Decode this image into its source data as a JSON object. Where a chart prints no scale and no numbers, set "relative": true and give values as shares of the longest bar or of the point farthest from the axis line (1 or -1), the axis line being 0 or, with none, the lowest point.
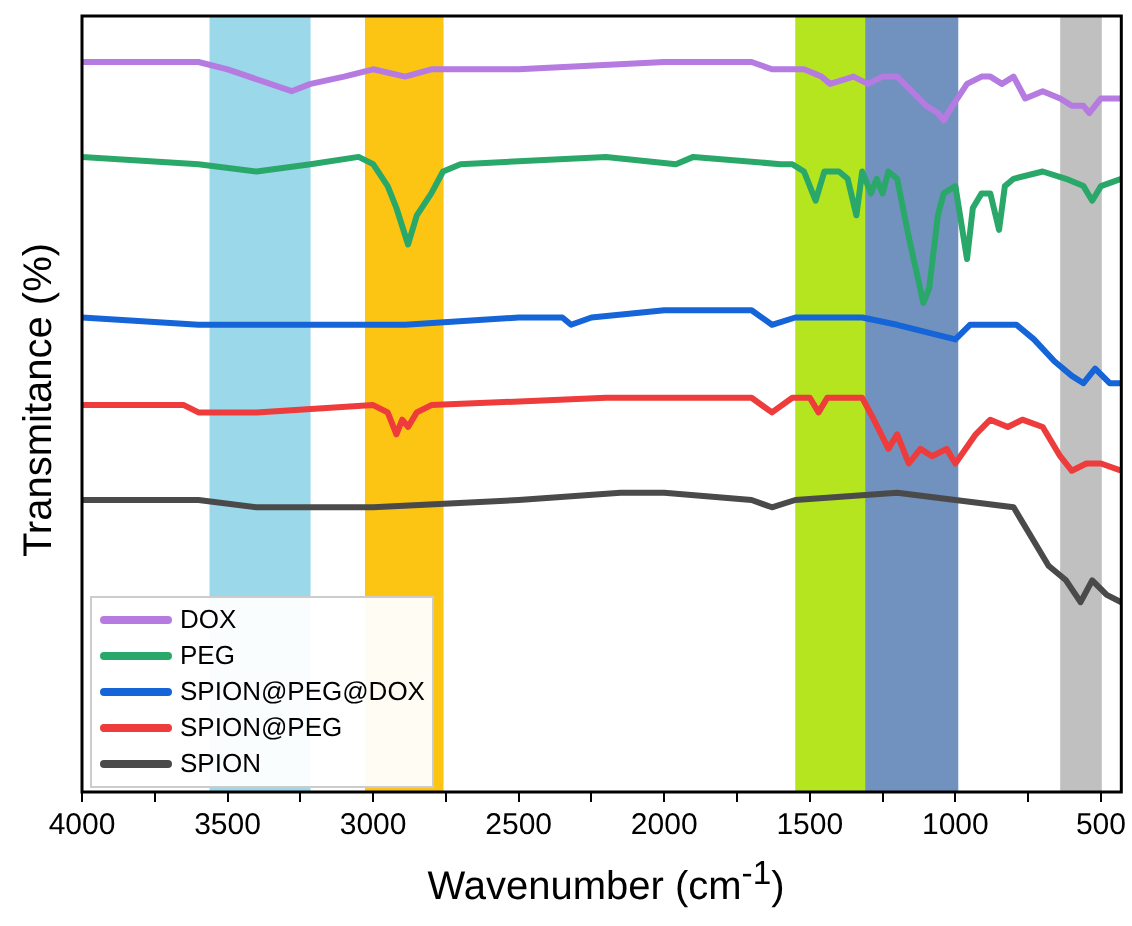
{
  "chart_data": {
    "type": "line",
    "xlabel": "Wavenumber (cm$^{-1}$)",
    "ylabel": "Transmitance (%)",
    "relative": true,
    "marker": "none",
    "legend": "bottom left",
    "tick_labels": "x",
    "xlim": [
      4000,
      430
    ],
    "xticks": [
      4000,
      {
        "value": 3750,
        "label": null
      },
      3500,
      {
        "value": 3250,
        "label": null
      },
      3000,
      {
        "value": 2750,
        "label": null
      },
      2500,
      {
        "value": 2250,
        "label": null
      },
      2000,
      {
        "value": 1750,
        "label": null
      },
      1500,
      {
        "value": 1250,
        "label": null
      },
      1000,
      {
        "value": 750,
        "label": null
      },
      500
    ],
    "bands": [
      {
        "axis": "x",
        "from": 3562,
        "to": 3215,
        "color": "#9ad8ea"
      },
      {
        "axis": "x",
        "from": 3028,
        "to": 2758,
        "color": "#fdc513"
      },
      {
        "axis": "x",
        "from": 1550,
        "to": 1310,
        "color": "#b5e51f"
      },
      {
        "axis": "x",
        "from": 1310,
        "to": 990,
        "color": "#7192bf"
      },
      {
        "axis": "x",
        "from": 640,
        "to": 497,
        "color": "#c0c0c0"
      }
    ],
    "series": [
      {
        "name": "DOX",
        "color": "#b57be0",
        "x": [
          4000,
          3600,
          3500,
          3280,
          3215,
          3100,
          3000,
          2890,
          2800,
          2500,
          2000,
          1700,
          1630,
          1580,
          1520,
          1460,
          1430,
          1350,
          1300,
          1250,
          1200,
          1150,
          1100,
          1060,
          1040,
          1010,
          960,
          910,
          880,
          840,
          800,
          760,
          700,
          640,
          600,
          560,
          540,
          500,
          430
        ],
        "values": [
          1.0,
          1.0,
          0.99,
          0.96,
          0.97,
          0.98,
          0.99,
          0.98,
          0.99,
          0.99,
          1.0,
          1.0,
          0.99,
          0.99,
          0.99,
          0.98,
          0.97,
          0.98,
          0.97,
          0.98,
          0.98,
          0.96,
          0.94,
          0.93,
          0.92,
          0.94,
          0.97,
          0.98,
          0.98,
          0.97,
          0.98,
          0.95,
          0.96,
          0.95,
          0.94,
          0.94,
          0.93,
          0.95,
          0.95
        ]
      },
      {
        "name": "PEG",
        "color": "#2aa86a",
        "x": [
          4000,
          3600,
          3400,
          3215,
          3050,
          3000,
          2950,
          2920,
          2880,
          2850,
          2800,
          2760,
          2700,
          2200,
          1960,
          1900,
          1600,
          1560,
          1520,
          1480,
          1450,
          1400,
          1370,
          1340,
          1320,
          1290,
          1270,
          1250,
          1230,
          1200,
          1160,
          1110,
          1090,
          1060,
          1040,
          1000,
          960,
          940,
          910,
          880,
          850,
          830,
          800,
          700,
          620,
          560,
          530,
          500,
          430
        ],
        "values": [
          0.87,
          0.86,
          0.85,
          0.86,
          0.87,
          0.86,
          0.83,
          0.8,
          0.75,
          0.79,
          0.82,
          0.85,
          0.86,
          0.87,
          0.86,
          0.87,
          0.86,
          0.86,
          0.85,
          0.81,
          0.85,
          0.85,
          0.84,
          0.79,
          0.85,
          0.82,
          0.84,
          0.82,
          0.85,
          0.84,
          0.76,
          0.67,
          0.69,
          0.79,
          0.82,
          0.83,
          0.73,
          0.8,
          0.82,
          0.82,
          0.77,
          0.83,
          0.84,
          0.85,
          0.84,
          0.83,
          0.81,
          0.83,
          0.84
        ]
      },
      {
        "name": "SPION@PEG@DOX",
        "color": "#1565d8",
        "x": [
          4000,
          3600,
          3400,
          3215,
          3000,
          2890,
          2500,
          2350,
          2320,
          2250,
          2000,
          1700,
          1630,
          1550,
          1320,
          1200,
          1100,
          1000,
          950,
          880,
          790,
          730,
          660,
          600,
          560,
          520,
          470,
          430
        ],
        "values": [
          0.65,
          0.64,
          0.64,
          0.64,
          0.64,
          0.64,
          0.65,
          0.65,
          0.64,
          0.65,
          0.66,
          0.66,
          0.64,
          0.65,
          0.65,
          0.64,
          0.63,
          0.62,
          0.64,
          0.64,
          0.64,
          0.62,
          0.59,
          0.57,
          0.56,
          0.58,
          0.56,
          0.56
        ]
      },
      {
        "name": "SPION@PEG",
        "color": "#ee3b3b",
        "x": [
          4000,
          3650,
          3600,
          3400,
          3000,
          2950,
          2920,
          2900,
          2880,
          2850,
          2800,
          2200,
          1700,
          1630,
          1560,
          1500,
          1470,
          1440,
          1320,
          1280,
          1230,
          1200,
          1160,
          1120,
          1080,
          1030,
          1000,
          930,
          880,
          820,
          770,
          700,
          640,
          600,
          550,
          500,
          430
        ],
        "values": [
          0.53,
          0.53,
          0.52,
          0.52,
          0.53,
          0.52,
          0.49,
          0.51,
          0.5,
          0.52,
          0.53,
          0.54,
          0.54,
          0.52,
          0.54,
          0.54,
          0.52,
          0.54,
          0.54,
          0.51,
          0.47,
          0.49,
          0.45,
          0.47,
          0.46,
          0.47,
          0.45,
          0.49,
          0.51,
          0.5,
          0.51,
          0.5,
          0.46,
          0.44,
          0.45,
          0.45,
          0.44
        ]
      },
      {
        "name": "SPION",
        "color": "#4a4a4a",
        "x": [
          4000,
          3600,
          3400,
          3215,
          3000,
          2500,
          2150,
          2000,
          1700,
          1630,
          1550,
          1200,
          1000,
          800,
          740,
          680,
          620,
          570,
          530,
          480,
          430
        ],
        "values": [
          0.4,
          0.4,
          0.39,
          0.39,
          0.39,
          0.4,
          0.41,
          0.41,
          0.4,
          0.39,
          0.4,
          0.41,
          0.4,
          0.39,
          0.35,
          0.31,
          0.29,
          0.26,
          0.29,
          0.27,
          0.26
        ]
      }
    ]
  }
}
